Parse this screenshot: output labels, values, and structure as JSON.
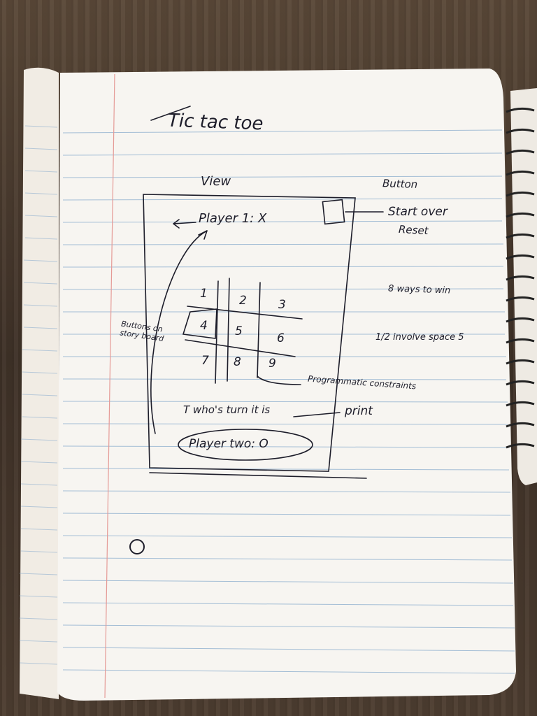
{
  "notebook": {
    "title": "Tic tac toe",
    "view_label": "View",
    "button_label": "Button",
    "player_one": "Player 1: X",
    "start_label": "Start over",
    "reset_label": "Reset",
    "ways_to_win": "8 ways to win",
    "half_involve": "1/2 involve space 5",
    "buttons_note": "Buttons on story board",
    "programmatic_note": "Programmatic constraints",
    "turn_label": "T who's turn it is",
    "print_label": "print",
    "player_two": "Player two: O",
    "grid_cells": [
      "1",
      "2",
      "3",
      "4",
      "5",
      "6",
      "7",
      "8",
      "9"
    ]
  }
}
